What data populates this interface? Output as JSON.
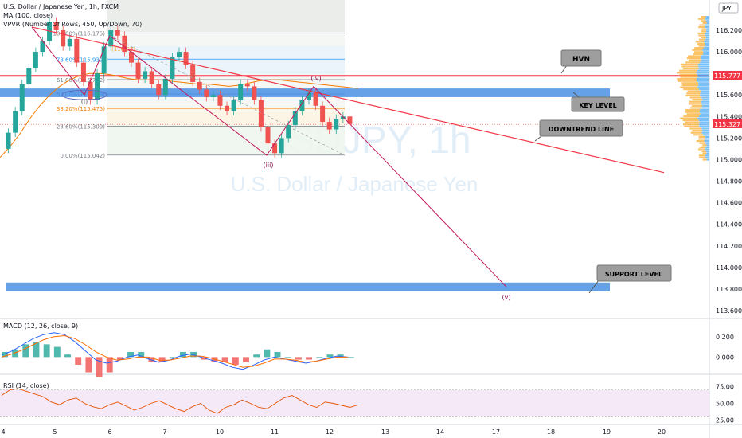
{
  "header": {
    "symbol_line": "U.S. Dollar / Japanese Yen, 1h, FXCM",
    "ma_line": "MA (100, close)",
    "vpvr_line": "VPVR (Number Of Rows, 450, Up/Down, 70)",
    "currency": "JPY",
    "macd_line": "MACD (12, 26, close, 9)",
    "rsi_line": "RSI (14, close)"
  },
  "watermark": {
    "symbol": "USDJPY, 1h",
    "name": "U.S. Dollar / Japanese Yen"
  },
  "annotations": {
    "hvn": "HVN",
    "key_level": "KEY LEVEL",
    "downtrend_line": "DOWNTREND LINE",
    "support_level": "SUPPORT LEVEL",
    "wave_i": "(i)",
    "wave_iii": "(iii)",
    "wave_iv": "(iv)",
    "wave_v": "(v)"
  },
  "colors": {
    "hvn_line": "#f23645",
    "zone": "#4a90e2",
    "downtrend": "#f23645",
    "projection": "#c2185b",
    "up": "#26a69a",
    "down": "#ef5350",
    "ma": "#f57c00",
    "macd": "#2962ff",
    "signal": "#ff6d00",
    "rsi": "#e65100",
    "rsi_band": "#e1bee7"
  },
  "chart_data": {
    "type": "line",
    "price": {
      "axis_ticks": [
        "116.200",
        "116.000",
        "115.800",
        "115.600",
        "115.400",
        "115.200",
        "115.000",
        "114.800",
        "114.600",
        "114.400",
        "114.200",
        "114.000",
        "113.800",
        "113.600"
      ],
      "axis_min": 113.6,
      "axis_max": 116.2,
      "x_ticks": [
        "4",
        "5",
        "6",
        "7",
        "10",
        "11",
        "12",
        "13",
        "14",
        "17",
        "18",
        "19",
        "20"
      ],
      "hvn_level": 115.777,
      "hvn_label": "115.777",
      "last_price": 115.327,
      "last_label": "115.327",
      "key_level_zone": [
        115.58,
        115.66
      ],
      "support_zone": [
        113.78,
        113.86
      ],
      "fibonacci": [
        {
          "label": "100.00%(116.175)",
          "value": 116.175
        },
        {
          "label": "78.60%(115.932)",
          "value": 115.932
        },
        {
          "label": "61.80%(115.742)",
          "value": 115.742
        },
        {
          "label": "50.00%(115.609)",
          "value": 115.609
        },
        {
          "label": "38.20%(115.475)",
          "value": 115.475
        },
        {
          "label": "23.60%(115.309)",
          "value": 115.309
        },
        {
          "label": "0.00%(115.042)",
          "value": 115.042
        }
      ],
      "fib_extra_label": "(116.03)",
      "waves": [
        {
          "label": "(i)",
          "x": 5.6,
          "price": 115.6
        },
        {
          "label": "(iii)",
          "x": 10.85,
          "price": 115.042
        },
        {
          "label": "(iv)",
          "x": 11.7,
          "price": 115.64
        },
        {
          "label": "(v)",
          "x": 17.2,
          "price": 113.82
        }
      ],
      "close_series": [
        115.1,
        115.25,
        115.45,
        115.7,
        115.85,
        116.0,
        116.1,
        116.28,
        116.2,
        116.05,
        116.12,
        115.9,
        115.72,
        115.55,
        115.8,
        116.05,
        116.2,
        116.15,
        116.0,
        115.9,
        115.75,
        115.82,
        115.7,
        115.6,
        115.75,
        115.95,
        116.0,
        115.88,
        115.72,
        115.65,
        115.58,
        115.6,
        115.5,
        115.45,
        115.55,
        115.7,
        115.68,
        115.55,
        115.3,
        115.15,
        115.06,
        115.2,
        115.32,
        115.45,
        115.55,
        115.62,
        115.5,
        115.35,
        115.28,
        115.38,
        115.4,
        115.33
      ],
      "ma_series": [
        115.02,
        115.12,
        115.24,
        115.38,
        115.5,
        115.6,
        115.68,
        115.74,
        115.78,
        115.8,
        115.8,
        115.79,
        115.77,
        115.75,
        115.74,
        115.74,
        115.74,
        115.73,
        115.72,
        115.71,
        115.7,
        115.7,
        115.69,
        115.68,
        115.69,
        115.71,
        115.73,
        115.74,
        115.74,
        115.73,
        115.72,
        115.71,
        115.7,
        115.69,
        115.68,
        115.67,
        115.66
      ]
    },
    "macd": {
      "axis_ticks": [
        "0.200",
        "0.000"
      ],
      "axis_min": -0.13,
      "axis_max": 0.3,
      "macd_series": [
        0.02,
        0.06,
        0.12,
        0.18,
        0.22,
        0.24,
        0.22,
        0.15,
        0.06,
        -0.03,
        -0.06,
        -0.04,
        0.0,
        0.02,
        -0.02,
        -0.05,
        -0.03,
        0.01,
        0.03,
        0.0,
        -0.03,
        -0.06,
        -0.1,
        -0.12,
        -0.08,
        -0.03,
        0.0,
        -0.02,
        -0.04,
        -0.06,
        -0.04,
        -0.01,
        0.01,
        0.0
      ],
      "signal_series": [
        0.0,
        0.03,
        0.07,
        0.12,
        0.17,
        0.2,
        0.21,
        0.18,
        0.12,
        0.05,
        0.0,
        -0.03,
        -0.02,
        0.0,
        0.0,
        -0.03,
        -0.03,
        -0.01,
        0.01,
        0.01,
        -0.01,
        -0.04,
        -0.07,
        -0.1,
        -0.09,
        -0.06,
        -0.02,
        -0.02,
        -0.03,
        -0.05,
        -0.04,
        -0.02,
        0.0,
        0.0
      ]
    },
    "rsi": {
      "axis_ticks": [
        "75.00",
        "50.00",
        "25.00"
      ],
      "axis_min": 22,
      "axis_max": 84,
      "band": [
        30,
        70
      ],
      "series": [
        62,
        70,
        72,
        68,
        64,
        60,
        52,
        48,
        55,
        58,
        50,
        45,
        42,
        48,
        52,
        46,
        40,
        44,
        50,
        54,
        48,
        42,
        38,
        45,
        50,
        40,
        35,
        44,
        48,
        55,
        50,
        44,
        42,
        50,
        58,
        62,
        55,
        48,
        44,
        52,
        50,
        47,
        44,
        48
      ]
    }
  }
}
